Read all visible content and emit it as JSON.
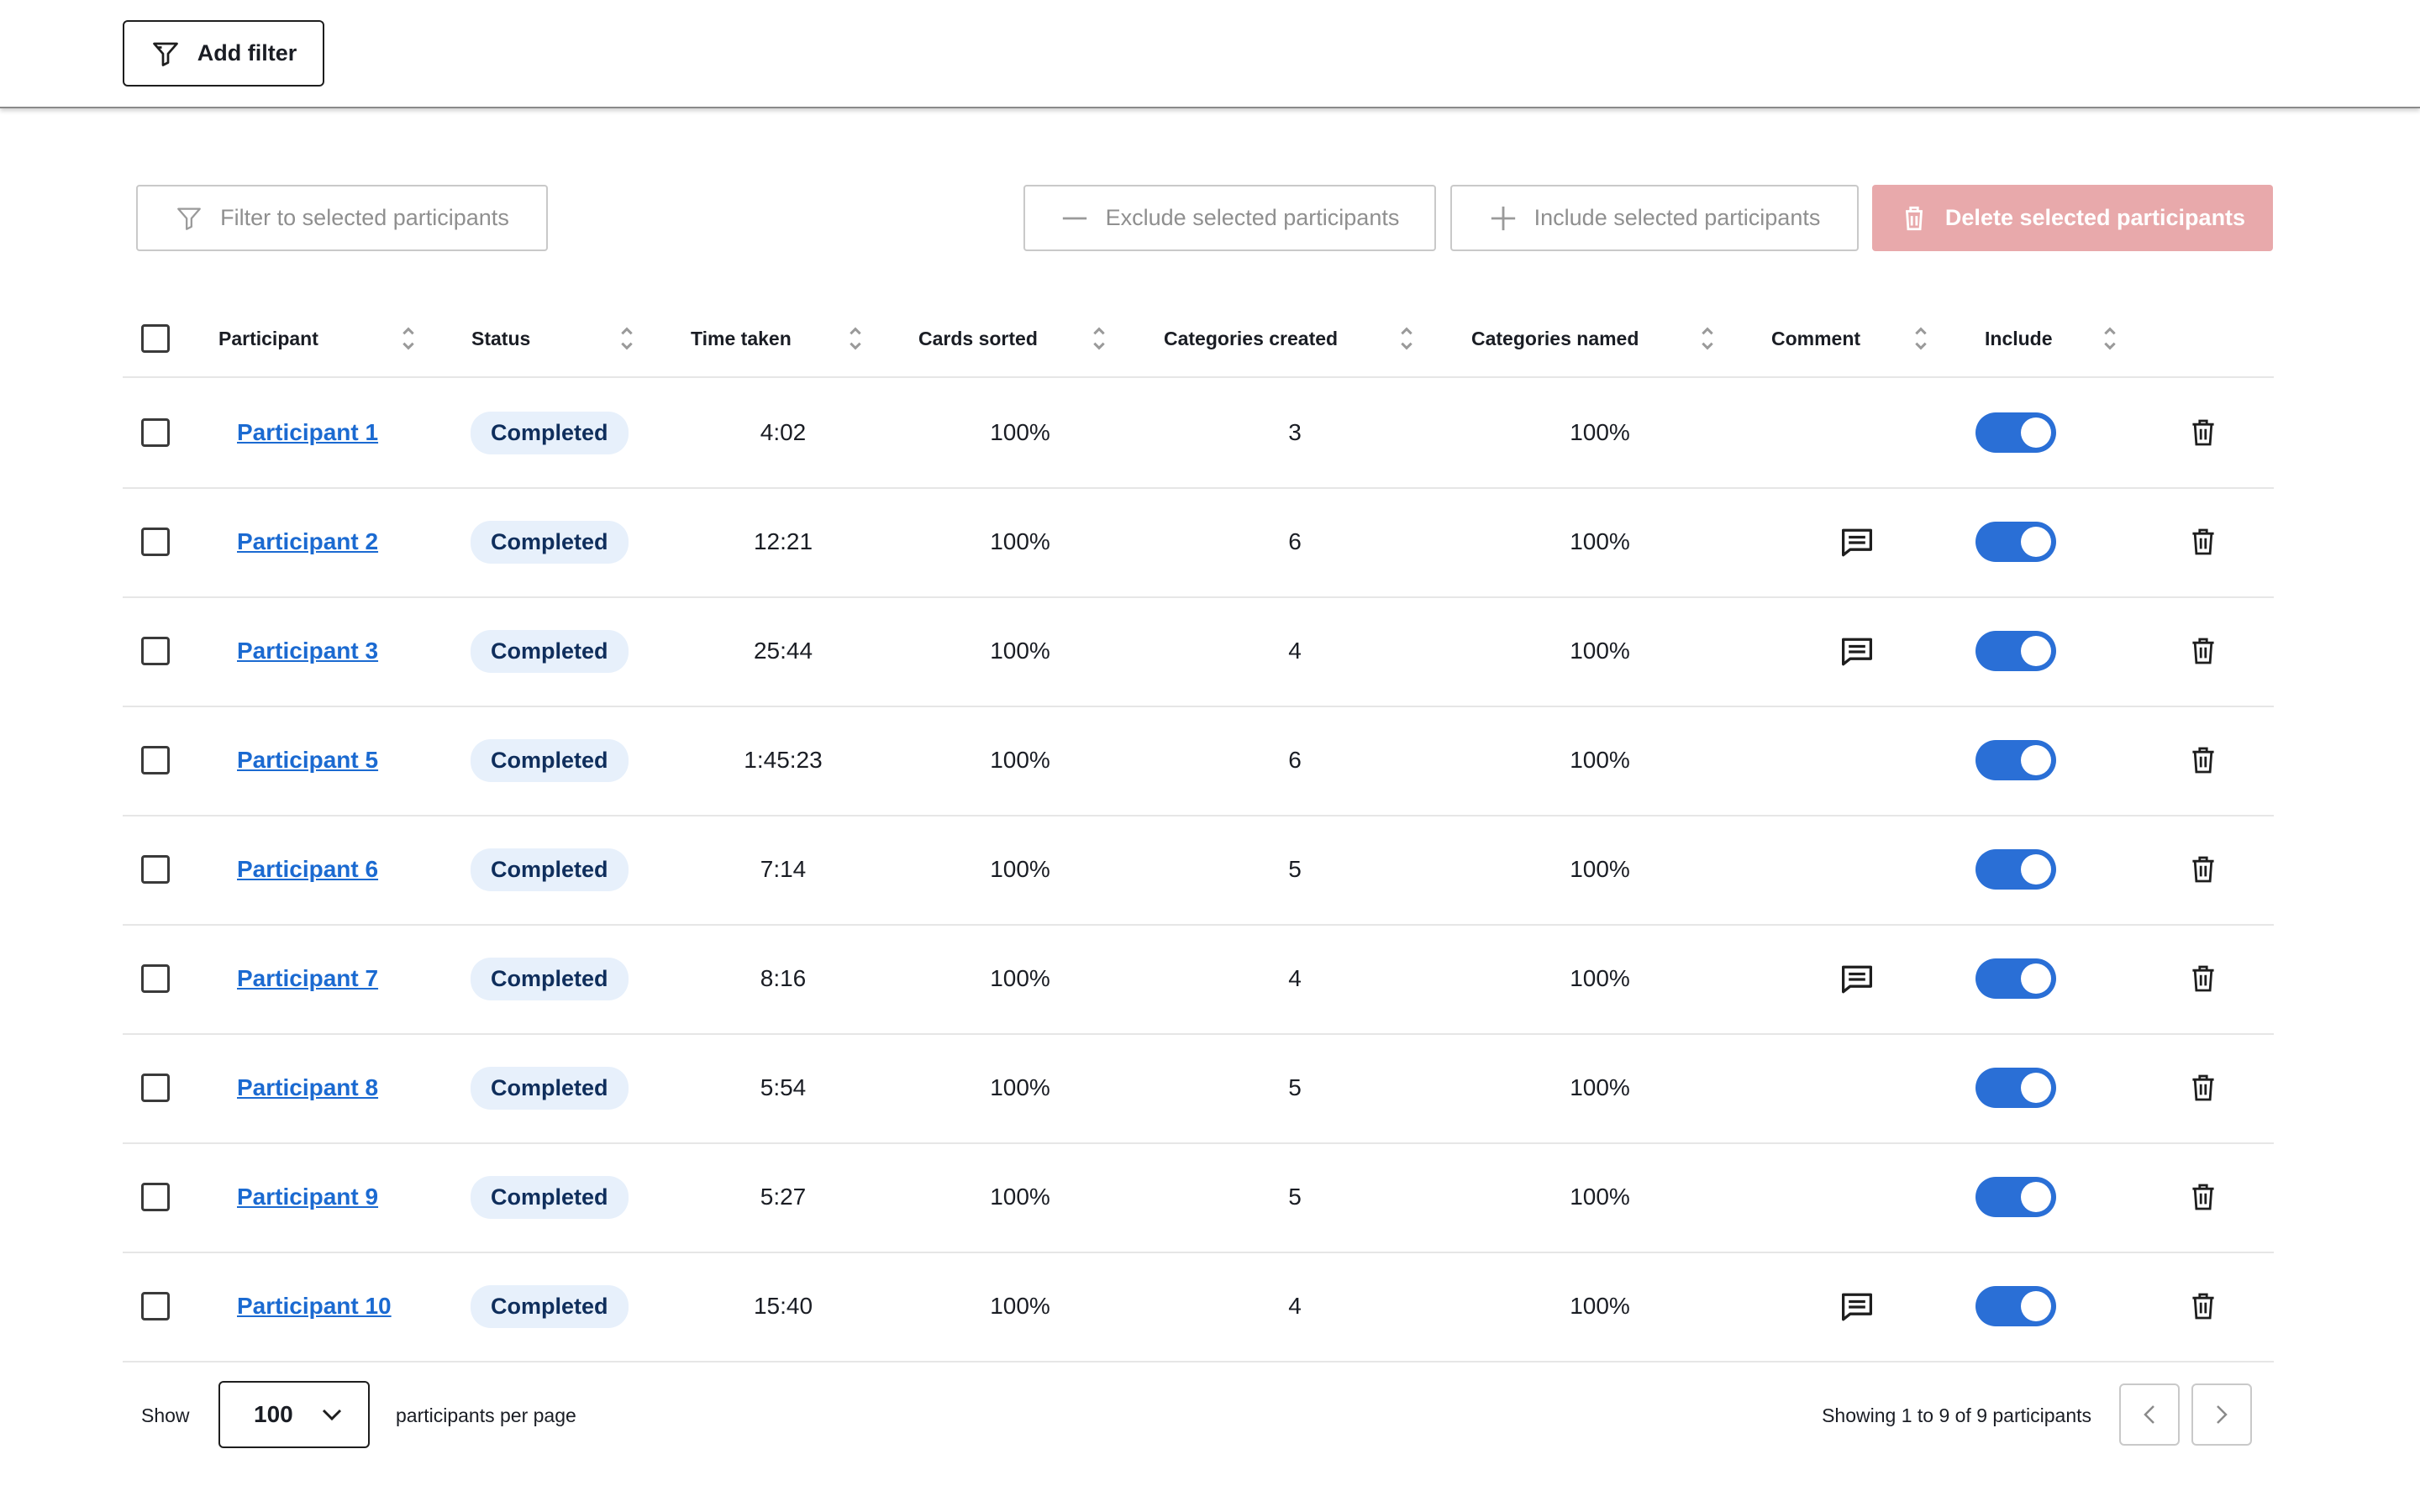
{
  "toolbar": {
    "add_filter_label": "Add filter",
    "filter_selected_label": "Filter to selected participants",
    "exclude_selected_label": "Exclude selected participants",
    "include_selected_label": "Include selected participants",
    "delete_selected_label": "Delete selected participants",
    "delete_color": "#e8a9ab"
  },
  "table": {
    "columns": [
      "Participant",
      "Status",
      "Time taken",
      "Cards sorted",
      "Categories created",
      "Categories named",
      "Comment",
      "Include"
    ],
    "rows": [
      {
        "participant": "Participant 1",
        "status": "Completed",
        "time": "4:02",
        "cards": "100%",
        "created": "3",
        "named": "100%",
        "comment": false,
        "include": true
      },
      {
        "participant": "Participant 2",
        "status": "Completed",
        "time": "12:21",
        "cards": "100%",
        "created": "6",
        "named": "100%",
        "comment": true,
        "include": true
      },
      {
        "participant": "Participant 3",
        "status": "Completed",
        "time": "25:44",
        "cards": "100%",
        "created": "4",
        "named": "100%",
        "comment": true,
        "include": true
      },
      {
        "participant": "Participant 5",
        "status": "Completed",
        "time": "1:45:23",
        "cards": "100%",
        "created": "6",
        "named": "100%",
        "comment": false,
        "include": true
      },
      {
        "participant": "Participant 6",
        "status": "Completed",
        "time": "7:14",
        "cards": "100%",
        "created": "5",
        "named": "100%",
        "comment": false,
        "include": true
      },
      {
        "participant": "Participant 7",
        "status": "Completed",
        "time": "8:16",
        "cards": "100%",
        "created": "4",
        "named": "100%",
        "comment": true,
        "include": true
      },
      {
        "participant": "Participant 8",
        "status": "Completed",
        "time": "5:54",
        "cards": "100%",
        "created": "5",
        "named": "100%",
        "comment": false,
        "include": true
      },
      {
        "participant": "Participant 9",
        "status": "Completed",
        "time": "5:27",
        "cards": "100%",
        "created": "5",
        "named": "100%",
        "comment": false,
        "include": true
      },
      {
        "participant": "Participant 10",
        "status": "Completed",
        "time": "15:40",
        "cards": "100%",
        "created": "4",
        "named": "100%",
        "comment": true,
        "include": true
      }
    ]
  },
  "footer": {
    "show_label": "Show",
    "per_page_value": "100",
    "per_page_label": "participants per page",
    "showing_text": "Showing 1 to 9 of 9 participants"
  },
  "colors": {
    "accent": "#2a6fd6",
    "link": "#1b6ad1",
    "badge_bg": "#e7f0fb"
  }
}
